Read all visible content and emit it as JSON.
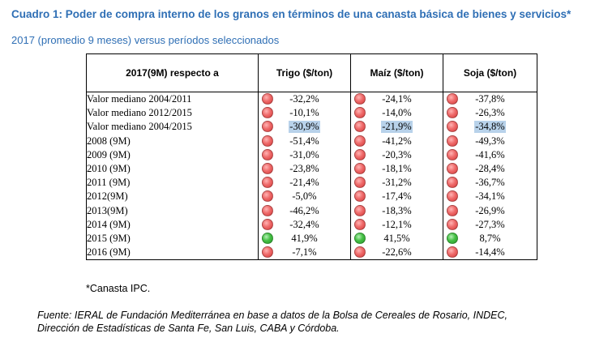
{
  "title": "Cuadro 1: Poder de compra interno de los granos en términos de una canasta básica de bienes y servicios*",
  "subtitle": "2017 (promedio 9 meses) versus períodos seleccionados",
  "table": {
    "headers": [
      "2017(9M) respecto a",
      "Trigo ($/ton)",
      "Maíz ($/ton)",
      "Soja ($/ton)"
    ],
    "rows": [
      {
        "label": "Valor mediano 2004/2011",
        "values": [
          "-32,2%",
          "-24,1%",
          "-37,8%"
        ],
        "status": [
          "red",
          "red",
          "red"
        ],
        "highlight": false
      },
      {
        "label": "Valor mediano 2012/2015",
        "values": [
          "-10,1%",
          "-14,0%",
          "-26,3%"
        ],
        "status": [
          "red",
          "red",
          "red"
        ],
        "highlight": false
      },
      {
        "label": "Valor mediano 2004/2015",
        "values": [
          "-30,9%",
          "-21,9%",
          "-34,8%"
        ],
        "status": [
          "red",
          "red",
          "red"
        ],
        "highlight": true
      },
      {
        "label": "2008 (9M)",
        "values": [
          "-51,4%",
          "-41,2%",
          "-49,3%"
        ],
        "status": [
          "red",
          "red",
          "red"
        ],
        "highlight": false
      },
      {
        "label": "2009 (9M)",
        "values": [
          "-31,0%",
          "-20,3%",
          "-41,6%"
        ],
        "status": [
          "red",
          "red",
          "red"
        ],
        "highlight": false
      },
      {
        "label": "2010 (9M)",
        "values": [
          "-23,8%",
          "-18,1%",
          "-28,4%"
        ],
        "status": [
          "red",
          "red",
          "red"
        ],
        "highlight": false
      },
      {
        "label": "2011 (9M)",
        "values": [
          "-21,4%",
          "-31,2%",
          "-36,7%"
        ],
        "status": [
          "red",
          "red",
          "red"
        ],
        "highlight": false
      },
      {
        "label": "2012(9M)",
        "values": [
          "-5,0%",
          "-17,4%",
          "-34,1%"
        ],
        "status": [
          "red",
          "red",
          "red"
        ],
        "highlight": false
      },
      {
        "label": "2013(9M)",
        "values": [
          "-46,2%",
          "-18,3%",
          "-26,9%"
        ],
        "status": [
          "red",
          "red",
          "red"
        ],
        "highlight": false
      },
      {
        "label": "2014 (9M)",
        "values": [
          "-32,4%",
          "-12,1%",
          "-27,3%"
        ],
        "status": [
          "red",
          "red",
          "red"
        ],
        "highlight": false
      },
      {
        "label": "2015 (9M)",
        "values": [
          "41,9%",
          "41,5%",
          "8,7%"
        ],
        "status": [
          "green",
          "green",
          "green"
        ],
        "highlight": false
      },
      {
        "label": "2016 (9M)",
        "values": [
          "-7,1%",
          "-22,6%",
          "-14,4%"
        ],
        "status": [
          "red",
          "red",
          "red"
        ],
        "highlight": false
      }
    ]
  },
  "note": "*Canasta IPC.",
  "source_line1": "Fuente: IERAL de Fundación Mediterránea en base a datos de la Bolsa de Cereales de Rosario, INDEC,",
  "source_line2": "Dirección de Estadísticas de Santa Fe, San Luis, CABA y Córdoba.",
  "colors": {
    "title": "#2f6fb5",
    "negative_dot": "#e05050",
    "positive_dot": "#3cb43c",
    "highlight": "#b8d2ea"
  }
}
